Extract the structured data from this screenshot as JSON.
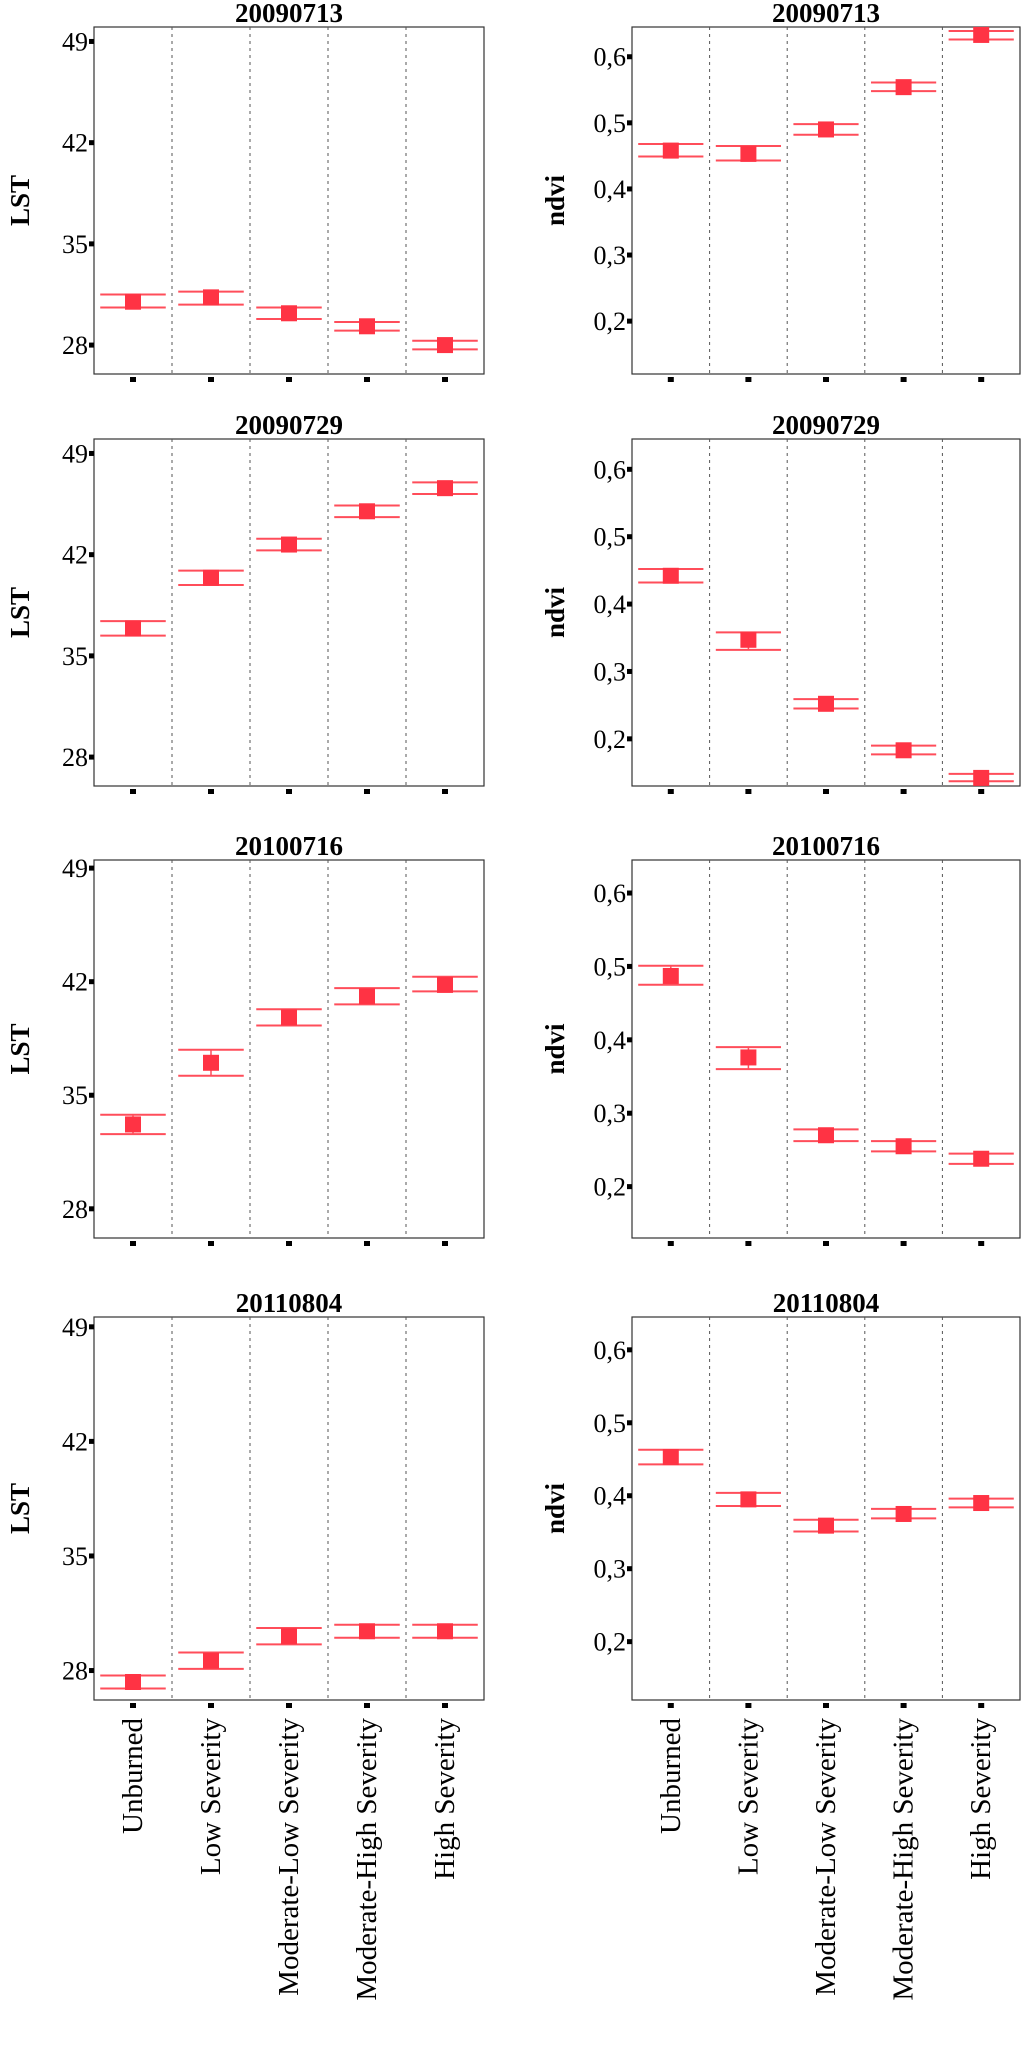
{
  "categories": [
    "Unburned",
    "Low Severity",
    "Moderate-Low Severity",
    "Moderate-High Severity",
    "High Severity"
  ],
  "colors": {
    "marker": "#ff3344",
    "bar": "#ff4d5a",
    "axis": "#000000",
    "separator": "#555555"
  },
  "chart_data": [
    {
      "type": "scatter",
      "title": "20090713",
      "ylabel": "LST",
      "ylim": [
        26,
        50
      ],
      "yticks": [
        28,
        35,
        42,
        49
      ],
      "ytick_labels": [
        "28",
        "35",
        "42",
        "49"
      ],
      "categories": [
        "Unburned",
        "Low Severity",
        "Moderate-Low Severity",
        "Moderate-High Severity",
        "High Severity"
      ],
      "values": [
        31.0,
        31.3,
        30.2,
        29.3,
        28.0
      ],
      "ci_low": [
        30.6,
        30.8,
        29.8,
        29.0,
        27.7
      ],
      "ci_high": [
        31.5,
        31.7,
        30.6,
        29.6,
        28.3
      ],
      "grid": false,
      "legend": "none",
      "error_bars": true
    },
    {
      "type": "scatter",
      "title": "20090713",
      "ylabel": "ndvi",
      "ylim": [
        0.12,
        0.645
      ],
      "yticks": [
        0.2,
        0.3,
        0.4,
        0.5,
        0.6
      ],
      "ytick_labels": [
        "0,2",
        "0,3",
        "0,4",
        "0,5",
        "0,6"
      ],
      "categories": [
        "Unburned",
        "Low Severity",
        "Moderate-Low Severity",
        "Moderate-High Severity",
        "High Severity"
      ],
      "values": [
        0.458,
        0.453,
        0.49,
        0.554,
        0.633
      ],
      "ci_low": [
        0.449,
        0.443,
        0.482,
        0.548,
        0.626
      ],
      "ci_high": [
        0.468,
        0.465,
        0.498,
        0.561,
        0.639
      ],
      "grid": false,
      "legend": "none",
      "error_bars": true
    },
    {
      "type": "scatter",
      "title": "20090729",
      "ylabel": "LST",
      "ylim": [
        26,
        50
      ],
      "yticks": [
        28,
        35,
        42,
        49
      ],
      "ytick_labels": [
        "28",
        "35",
        "42",
        "49"
      ],
      "categories": [
        "Unburned",
        "Low Severity",
        "Moderate-Low Severity",
        "Moderate-High Severity",
        "High Severity"
      ],
      "values": [
        36.9,
        40.4,
        42.7,
        45.0,
        46.6
      ],
      "ci_low": [
        36.4,
        39.9,
        42.3,
        44.6,
        46.2
      ],
      "ci_high": [
        37.4,
        40.9,
        43.1,
        45.4,
        47.0
      ],
      "grid": false,
      "legend": "none",
      "error_bars": true
    },
    {
      "type": "scatter",
      "title": "20090729",
      "ylabel": "ndvi",
      "ylim": [
        0.13,
        0.645
      ],
      "yticks": [
        0.2,
        0.3,
        0.4,
        0.5,
        0.6
      ],
      "ytick_labels": [
        "0,2",
        "0,3",
        "0,4",
        "0,5",
        "0,6"
      ],
      "categories": [
        "Unburned",
        "Low Severity",
        "Moderate-Low Severity",
        "Moderate-High Severity",
        "High Severity"
      ],
      "values": [
        0.442,
        0.347,
        0.252,
        0.183,
        0.142
      ],
      "ci_low": [
        0.432,
        0.332,
        0.245,
        0.177,
        0.137
      ],
      "ci_high": [
        0.452,
        0.358,
        0.259,
        0.19,
        0.148
      ],
      "grid": false,
      "legend": "none",
      "error_bars": true
    },
    {
      "type": "scatter",
      "title": "20100716",
      "ylabel": "LST",
      "ylim": [
        26.2,
        49.5
      ],
      "yticks": [
        28,
        35,
        42,
        49
      ],
      "ytick_labels": [
        "28",
        "35",
        "42",
        "49"
      ],
      "categories": [
        "Unburned",
        "Low Severity",
        "Moderate-Low Severity",
        "Moderate-High Severity",
        "High Severity"
      ],
      "values": [
        33.2,
        37.0,
        39.8,
        41.1,
        41.8
      ],
      "ci_low": [
        32.6,
        36.2,
        39.3,
        40.6,
        41.4
      ],
      "ci_high": [
        33.8,
        37.8,
        40.3,
        41.6,
        42.3
      ],
      "grid": false,
      "legend": "none",
      "error_bars": true
    },
    {
      "type": "scatter",
      "title": "20100716",
      "ylabel": "ndvi",
      "ylim": [
        0.13,
        0.645
      ],
      "yticks": [
        0.2,
        0.3,
        0.4,
        0.5,
        0.6
      ],
      "ytick_labels": [
        "0,2",
        "0,3",
        "0,4",
        "0,5",
        "0,6"
      ],
      "categories": [
        "Unburned",
        "Low Severity",
        "Moderate-Low Severity",
        "Moderate-High Severity",
        "High Severity"
      ],
      "values": [
        0.487,
        0.376,
        0.27,
        0.255,
        0.238
      ],
      "ci_low": [
        0.475,
        0.36,
        0.262,
        0.248,
        0.231
      ],
      "ci_high": [
        0.501,
        0.39,
        0.278,
        0.262,
        0.245
      ],
      "grid": false,
      "legend": "none",
      "error_bars": true
    },
    {
      "type": "scatter",
      "title": "20110804",
      "ylabel": "LST",
      "ylim": [
        26.2,
        49.6
      ],
      "yticks": [
        28,
        35,
        42,
        49
      ],
      "ytick_labels": [
        "28",
        "35",
        "42",
        "49"
      ],
      "categories": [
        "Unburned",
        "Low Severity",
        "Moderate-Low Severity",
        "Moderate-High Severity",
        "High Severity"
      ],
      "values": [
        27.3,
        28.6,
        30.1,
        30.4,
        30.4
      ],
      "ci_low": [
        26.9,
        28.1,
        29.6,
        30.0,
        30.0
      ],
      "ci_high": [
        27.7,
        29.1,
        30.6,
        30.8,
        30.8
      ],
      "grid": false,
      "legend": "none",
      "error_bars": true
    },
    {
      "type": "scatter",
      "title": "20110804",
      "ylabel": "ndvi",
      "ylim": [
        0.12,
        0.645
      ],
      "yticks": [
        0.2,
        0.3,
        0.4,
        0.5,
        0.6
      ],
      "ytick_labels": [
        "0,2",
        "0,3",
        "0,4",
        "0,5",
        "0,6"
      ],
      "categories": [
        "Unburned",
        "Low Severity",
        "Moderate-Low Severity",
        "Moderate-High Severity",
        "High Severity"
      ],
      "values": [
        0.453,
        0.395,
        0.359,
        0.375,
        0.39
      ],
      "ci_low": [
        0.443,
        0.386,
        0.351,
        0.369,
        0.384
      ],
      "ci_high": [
        0.463,
        0.404,
        0.367,
        0.382,
        0.396
      ],
      "grid": false,
      "legend": "none",
      "error_bars": true
    }
  ]
}
